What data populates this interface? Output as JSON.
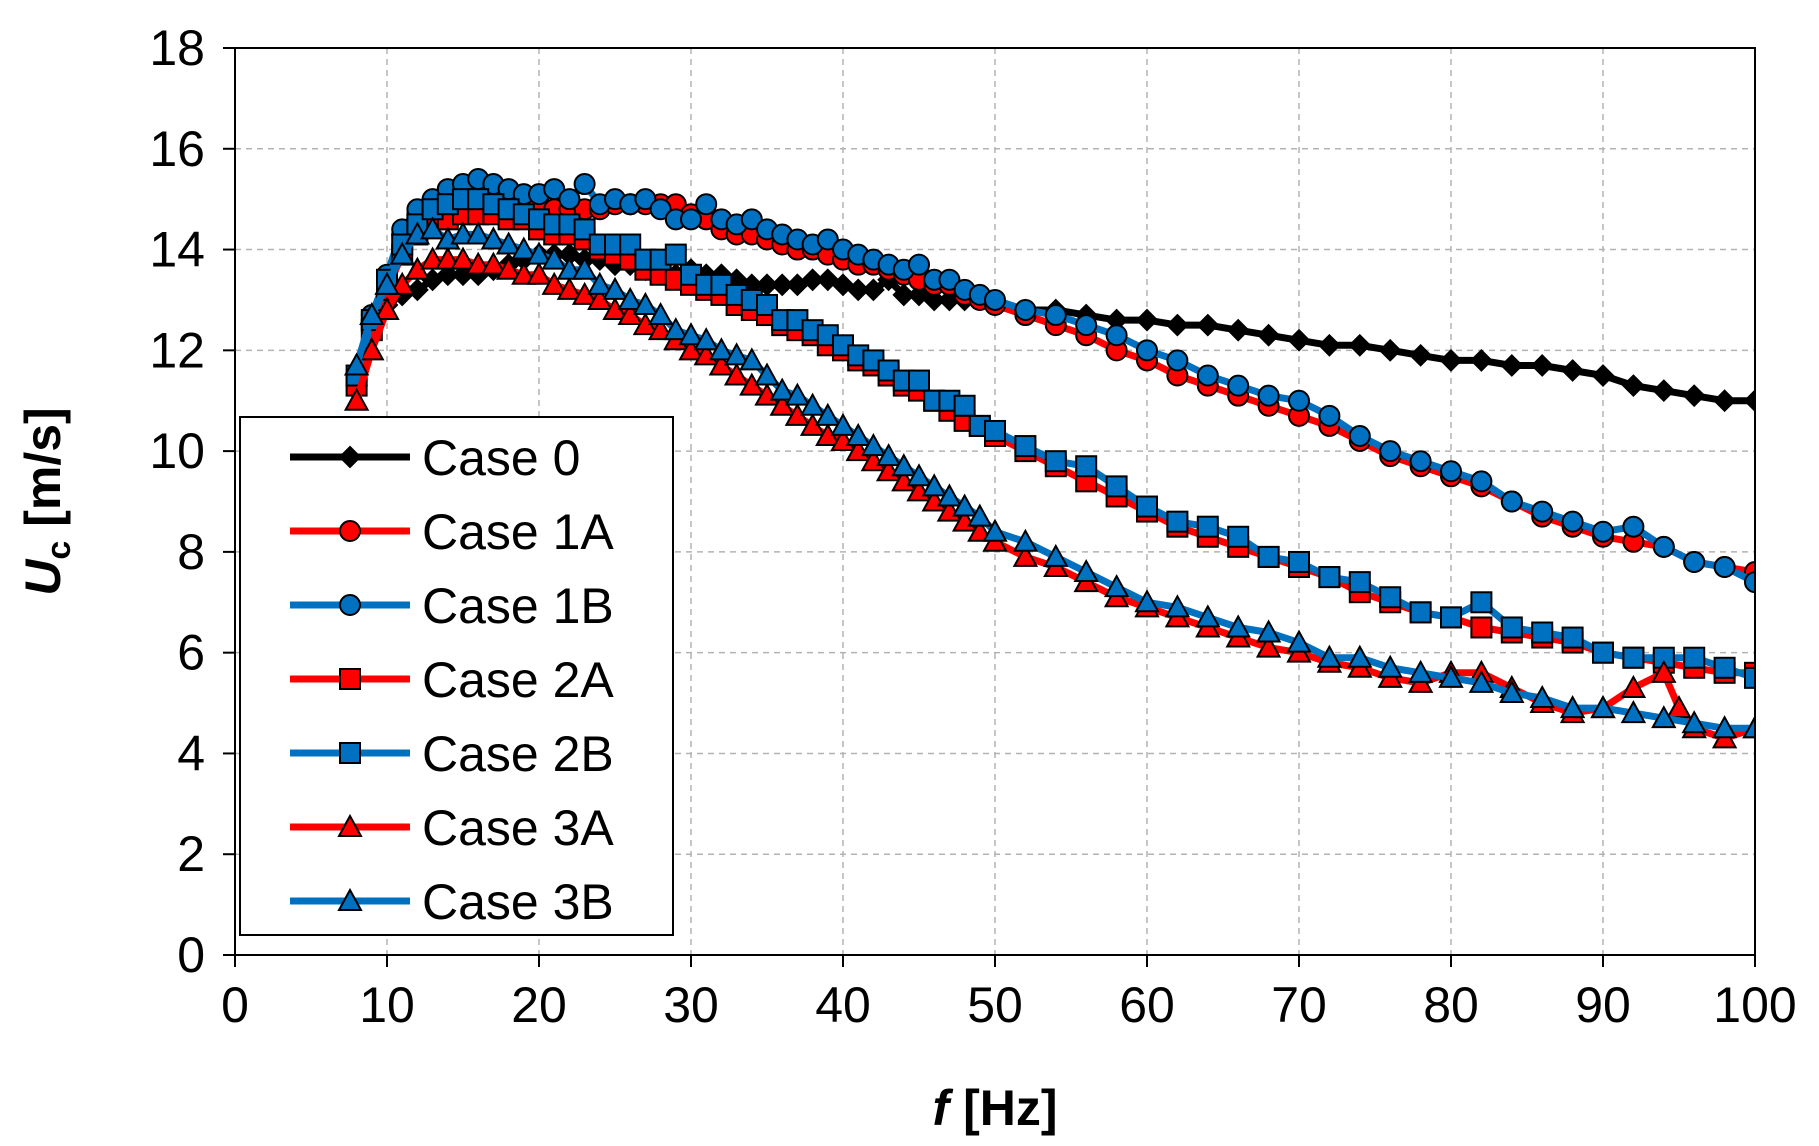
{
  "chart_data": {
    "type": "line",
    "xlabel": {
      "symbol": "f",
      "unit": "[Hz]"
    },
    "ylabel": {
      "symbol": "U",
      "subscript": "c",
      "unit": "[m/s]"
    },
    "xlim": [
      0,
      100
    ],
    "ylim": [
      0,
      18
    ],
    "x_ticks": [
      "0",
      "10",
      "20",
      "30",
      "40",
      "50",
      "60",
      "70",
      "80",
      "90",
      "100"
    ],
    "y_ticks": [
      "0",
      "2",
      "4",
      "6",
      "8",
      "10",
      "12",
      "14",
      "16",
      "18"
    ],
    "grid": true,
    "legend_position": "bottom-left",
    "series": [
      {
        "name": "Case 0",
        "line_color": "#000000",
        "marker": "diamond",
        "marker_fill": "#000000",
        "x": [
          8,
          9,
          10,
          11,
          12,
          13,
          14,
          15,
          16,
          17,
          18,
          19,
          20,
          21,
          22,
          23,
          24,
          25,
          26,
          27,
          28,
          29,
          30,
          31,
          32,
          33,
          34,
          35,
          36,
          37,
          38,
          39,
          40,
          41,
          42,
          43,
          44,
          45,
          46,
          47,
          48,
          50,
          52,
          54,
          56,
          58,
          60,
          62,
          64,
          66,
          68,
          70,
          72,
          74,
          76,
          78,
          80,
          82,
          84,
          86,
          88,
          90,
          92,
          94,
          96,
          98,
          100
        ],
        "y": [
          11.3,
          12.5,
          12.9,
          13.1,
          13.2,
          13.4,
          13.5,
          13.5,
          13.5,
          13.6,
          13.7,
          13.8,
          13.9,
          13.9,
          13.9,
          13.8,
          13.8,
          13.7,
          13.7,
          13.6,
          13.6,
          13.5,
          13.6,
          13.5,
          13.5,
          13.4,
          13.3,
          13.3,
          13.3,
          13.3,
          13.4,
          13.4,
          13.3,
          13.2,
          13.2,
          13.4,
          13.1,
          13.1,
          13.0,
          13.0,
          13.0,
          12.9,
          12.8,
          12.8,
          12.7,
          12.6,
          12.6,
          12.5,
          12.5,
          12.4,
          12.3,
          12.2,
          12.1,
          12.1,
          12.0,
          11.9,
          11.8,
          11.8,
          11.7,
          11.7,
          11.6,
          11.5,
          11.3,
          11.2,
          11.1,
          11.0,
          11.0
        ]
      },
      {
        "name": "Case 1A",
        "line_color": "#ff0000",
        "marker": "circle",
        "marker_fill": "#ff0000",
        "x": [
          8,
          9,
          10,
          11,
          12,
          13,
          14,
          15,
          16,
          17,
          18,
          19,
          20,
          21,
          22,
          23,
          24,
          25,
          26,
          27,
          28,
          29,
          30,
          31,
          32,
          33,
          34,
          35,
          36,
          37,
          38,
          39,
          40,
          41,
          42,
          43,
          44,
          45,
          46,
          47,
          48,
          49,
          50,
          52,
          54,
          56,
          58,
          60,
          62,
          64,
          66,
          68,
          70,
          72,
          74,
          76,
          78,
          80,
          82,
          84,
          86,
          88,
          90,
          92,
          94,
          96,
          98,
          100
        ],
        "y": [
          11.4,
          12.6,
          13.4,
          14.3,
          14.7,
          14.9,
          15.1,
          15.2,
          15.2,
          15.1,
          15.0,
          14.9,
          14.9,
          14.8,
          14.8,
          14.8,
          14.8,
          14.9,
          14.9,
          14.9,
          14.9,
          14.9,
          14.7,
          14.6,
          14.4,
          14.3,
          14.3,
          14.2,
          14.1,
          14.0,
          14.0,
          13.9,
          13.8,
          13.7,
          13.7,
          13.6,
          13.5,
          13.4,
          13.3,
          13.3,
          13.1,
          13.0,
          12.9,
          12.7,
          12.5,
          12.3,
          12.0,
          11.8,
          11.5,
          11.3,
          11.1,
          10.9,
          10.7,
          10.5,
          10.2,
          9.9,
          9.7,
          9.5,
          9.3,
          9.0,
          8.7,
          8.5,
          8.3,
          8.2,
          8.1,
          7.8,
          7.7,
          7.6
        ]
      },
      {
        "name": "Case 1B",
        "line_color": "#0070c0",
        "marker": "circle",
        "marker_fill": "#0070c0",
        "x": [
          8,
          9,
          10,
          11,
          12,
          13,
          14,
          15,
          16,
          17,
          18,
          19,
          20,
          21,
          22,
          23,
          24,
          25,
          26,
          27,
          28,
          29,
          30,
          31,
          32,
          33,
          34,
          35,
          36,
          37,
          38,
          39,
          40,
          41,
          42,
          43,
          44,
          45,
          46,
          47,
          48,
          49,
          50,
          52,
          54,
          56,
          58,
          60,
          62,
          64,
          66,
          68,
          70,
          72,
          74,
          76,
          78,
          80,
          82,
          84,
          86,
          88,
          90,
          92,
          94,
          96,
          98,
          100
        ],
        "y": [
          11.5,
          12.7,
          13.5,
          14.4,
          14.8,
          15.0,
          15.2,
          15.3,
          15.4,
          15.3,
          15.2,
          15.1,
          15.1,
          15.2,
          15.0,
          15.3,
          14.9,
          15.0,
          14.9,
          15.0,
          14.8,
          14.6,
          14.6,
          14.9,
          14.6,
          14.5,
          14.6,
          14.4,
          14.3,
          14.2,
          14.1,
          14.2,
          14.0,
          13.9,
          13.8,
          13.7,
          13.6,
          13.7,
          13.4,
          13.4,
          13.2,
          13.1,
          13.0,
          12.8,
          12.7,
          12.5,
          12.3,
          12.0,
          11.8,
          11.5,
          11.3,
          11.1,
          11.0,
          10.7,
          10.3,
          10.0,
          9.8,
          9.6,
          9.4,
          9.0,
          8.8,
          8.6,
          8.4,
          8.5,
          8.1,
          7.8,
          7.7,
          7.4
        ]
      },
      {
        "name": "Case 2A",
        "line_color": "#ff0000",
        "marker": "square",
        "marker_fill": "#ff0000",
        "x": [
          8,
          9,
          10,
          11,
          12,
          13,
          14,
          15,
          16,
          17,
          18,
          19,
          20,
          21,
          22,
          23,
          24,
          25,
          26,
          27,
          28,
          29,
          30,
          31,
          32,
          33,
          34,
          35,
          36,
          37,
          38,
          39,
          40,
          41,
          42,
          43,
          44,
          45,
          46,
          47,
          48,
          49,
          50,
          52,
          54,
          56,
          58,
          60,
          62,
          64,
          66,
          68,
          70,
          72,
          74,
          76,
          78,
          80,
          82,
          84,
          86,
          88,
          90,
          92,
          94,
          96,
          98,
          100
        ],
        "y": [
          11.3,
          12.4,
          13.2,
          13.9,
          14.3,
          14.6,
          14.6,
          14.7,
          14.7,
          14.7,
          14.6,
          14.6,
          14.4,
          14.3,
          14.3,
          14.2,
          14.0,
          13.9,
          13.8,
          13.6,
          13.5,
          13.4,
          13.3,
          13.2,
          13.1,
          12.9,
          12.8,
          12.7,
          12.5,
          12.4,
          12.3,
          12.1,
          12.0,
          11.8,
          11.7,
          11.5,
          11.3,
          11.2,
          11.0,
          10.8,
          10.6,
          10.5,
          10.3,
          10.0,
          9.7,
          9.4,
          9.1,
          8.8,
          8.5,
          8.3,
          8.1,
          7.9,
          7.7,
          7.5,
          7.2,
          7.0,
          6.8,
          6.7,
          6.5,
          6.4,
          6.3,
          6.2,
          6.0,
          5.9,
          5.8,
          5.7,
          5.6,
          5.6
        ]
      },
      {
        "name": "Case 2B",
        "line_color": "#0070c0",
        "marker": "square",
        "marker_fill": "#0070c0",
        "x": [
          8,
          9,
          10,
          11,
          12,
          13,
          14,
          15,
          16,
          17,
          18,
          19,
          20,
          21,
          22,
          23,
          24,
          25,
          26,
          27,
          28,
          29,
          30,
          31,
          32,
          33,
          34,
          35,
          36,
          37,
          38,
          39,
          40,
          41,
          42,
          43,
          44,
          45,
          46,
          47,
          48,
          49,
          50,
          52,
          54,
          56,
          58,
          60,
          62,
          64,
          66,
          68,
          70,
          72,
          74,
          76,
          78,
          80,
          82,
          84,
          86,
          88,
          90,
          92,
          94,
          96,
          98,
          100
        ],
        "y": [
          11.5,
          12.6,
          13.4,
          14.1,
          14.5,
          14.8,
          14.9,
          15.0,
          15.0,
          14.9,
          14.8,
          14.7,
          14.6,
          14.5,
          14.5,
          14.4,
          14.1,
          14.1,
          14.1,
          13.8,
          13.8,
          13.9,
          13.5,
          13.3,
          13.3,
          13.1,
          13.0,
          12.9,
          12.6,
          12.6,
          12.4,
          12.3,
          12.1,
          11.9,
          11.8,
          11.6,
          11.4,
          11.4,
          11.0,
          11.0,
          10.9,
          10.5,
          10.4,
          10.1,
          9.8,
          9.7,
          9.3,
          8.9,
          8.6,
          8.5,
          8.3,
          7.9,
          7.8,
          7.5,
          7.4,
          7.1,
          6.8,
          6.7,
          7.0,
          6.5,
          6.4,
          6.3,
          6.0,
          5.9,
          5.9,
          5.9,
          5.7,
          5.5
        ]
      },
      {
        "name": "Case 3A",
        "line_color": "#ff0000",
        "marker": "triangle",
        "marker_fill": "#ff0000",
        "x": [
          8,
          9,
          10,
          11,
          12,
          13,
          14,
          15,
          16,
          17,
          18,
          19,
          20,
          21,
          22,
          23,
          24,
          25,
          26,
          27,
          28,
          29,
          30,
          31,
          32,
          33,
          34,
          35,
          36,
          37,
          38,
          39,
          40,
          41,
          42,
          43,
          44,
          45,
          46,
          47,
          48,
          49,
          50,
          52,
          54,
          56,
          58,
          60,
          62,
          64,
          66,
          68,
          70,
          72,
          74,
          76,
          78,
          80,
          82,
          84,
          86,
          88,
          90,
          92,
          94,
          95,
          96,
          98,
          100
        ],
        "y": [
          11.0,
          12.0,
          12.8,
          13.3,
          13.6,
          13.8,
          13.8,
          13.8,
          13.7,
          13.7,
          13.6,
          13.5,
          13.5,
          13.3,
          13.2,
          13.1,
          13.0,
          12.8,
          12.7,
          12.5,
          12.4,
          12.2,
          12.0,
          11.9,
          11.7,
          11.5,
          11.3,
          11.1,
          10.9,
          10.7,
          10.5,
          10.3,
          10.2,
          10.0,
          9.8,
          9.6,
          9.4,
          9.2,
          9.0,
          8.8,
          8.6,
          8.4,
          8.2,
          7.9,
          7.7,
          7.4,
          7.1,
          6.9,
          6.7,
          6.5,
          6.3,
          6.1,
          6.0,
          5.8,
          5.7,
          5.5,
          5.4,
          5.6,
          5.6,
          5.3,
          5.0,
          4.8,
          4.9,
          5.3,
          5.6,
          4.9,
          4.5,
          4.3,
          4.5
        ]
      },
      {
        "name": "Case 3B",
        "line_color": "#0070c0",
        "marker": "triangle",
        "marker_fill": "#0070c0",
        "x": [
          8,
          9,
          10,
          11,
          12,
          13,
          14,
          15,
          16,
          17,
          18,
          19,
          20,
          21,
          22,
          23,
          24,
          25,
          26,
          27,
          28,
          29,
          30,
          31,
          32,
          33,
          34,
          35,
          36,
          37,
          38,
          39,
          40,
          41,
          42,
          43,
          44,
          45,
          46,
          47,
          48,
          49,
          50,
          52,
          54,
          56,
          58,
          60,
          62,
          64,
          66,
          68,
          70,
          72,
          74,
          76,
          78,
          80,
          82,
          84,
          86,
          88,
          90,
          92,
          94,
          96,
          98,
          100
        ],
        "y": [
          11.7,
          12.7,
          13.3,
          13.9,
          14.3,
          14.4,
          14.2,
          14.3,
          14.3,
          14.2,
          14.1,
          14.0,
          13.9,
          13.8,
          13.6,
          13.6,
          13.3,
          13.2,
          13.0,
          12.9,
          12.7,
          12.4,
          12.3,
          12.2,
          12.0,
          11.9,
          11.8,
          11.5,
          11.2,
          11.1,
          10.9,
          10.7,
          10.5,
          10.3,
          10.1,
          9.9,
          9.7,
          9.5,
          9.3,
          9.1,
          8.9,
          8.7,
          8.4,
          8.2,
          7.9,
          7.6,
          7.3,
          7.0,
          6.9,
          6.7,
          6.5,
          6.4,
          6.2,
          5.9,
          5.9,
          5.7,
          5.6,
          5.5,
          5.4,
          5.2,
          5.1,
          4.9,
          4.9,
          4.8,
          4.7,
          4.6,
          4.5,
          4.5
        ]
      }
    ]
  }
}
